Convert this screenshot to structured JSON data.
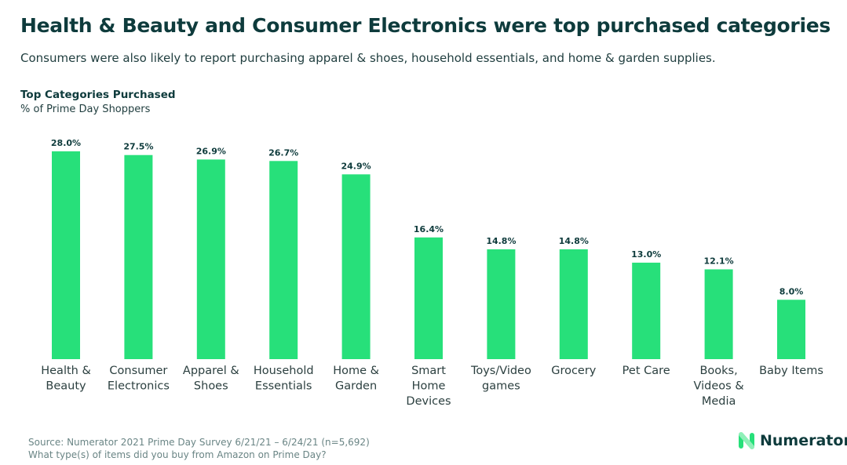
{
  "title": "Health & Beauty and Consumer Electronics were top purchased categories",
  "subtitle": "Consumers were also likely to report purchasing apparel & shoes, household essentials, and home & garden supplies.",
  "chart_data": {
    "type": "bar",
    "title": "Top Categories Purchased",
    "ylabel": "% of Prime Day Shoppers",
    "xlabel": "",
    "categories": [
      [
        "Health &",
        "Beauty"
      ],
      [
        "Consumer",
        "Electronics"
      ],
      [
        "Apparel &",
        "Shoes"
      ],
      [
        "Household",
        "Essentials"
      ],
      [
        "Home &",
        "Garden"
      ],
      [
        "Smart",
        "Home",
        "Devices"
      ],
      [
        "Toys/Video",
        "games"
      ],
      [
        "Grocery"
      ],
      [
        "Pet Care"
      ],
      [
        "Books,",
        "Videos &",
        "Media"
      ],
      [
        "Baby Items"
      ]
    ],
    "values": [
      28.0,
      27.5,
      26.9,
      26.7,
      24.9,
      16.4,
      14.8,
      14.8,
      13.0,
      12.1,
      8.0
    ],
    "data_labels": [
      "28.0%",
      "27.5%",
      "26.9%",
      "26.7%",
      "24.9%",
      "16.4%",
      "14.8%",
      "14.8%",
      "13.0%",
      "12.1%",
      "8.0%"
    ],
    "ylim": [
      0,
      30
    ],
    "grid": false,
    "bar_color": "#27e07a"
  },
  "source": {
    "line1": "Source: Numerator 2021 Prime Day Survey 6/21/21 – 6/24/21  (n=5,692)",
    "line2": "What type(s) of items did you buy from Amazon on Prime Day?"
  },
  "logo": {
    "name": "Numerator"
  }
}
